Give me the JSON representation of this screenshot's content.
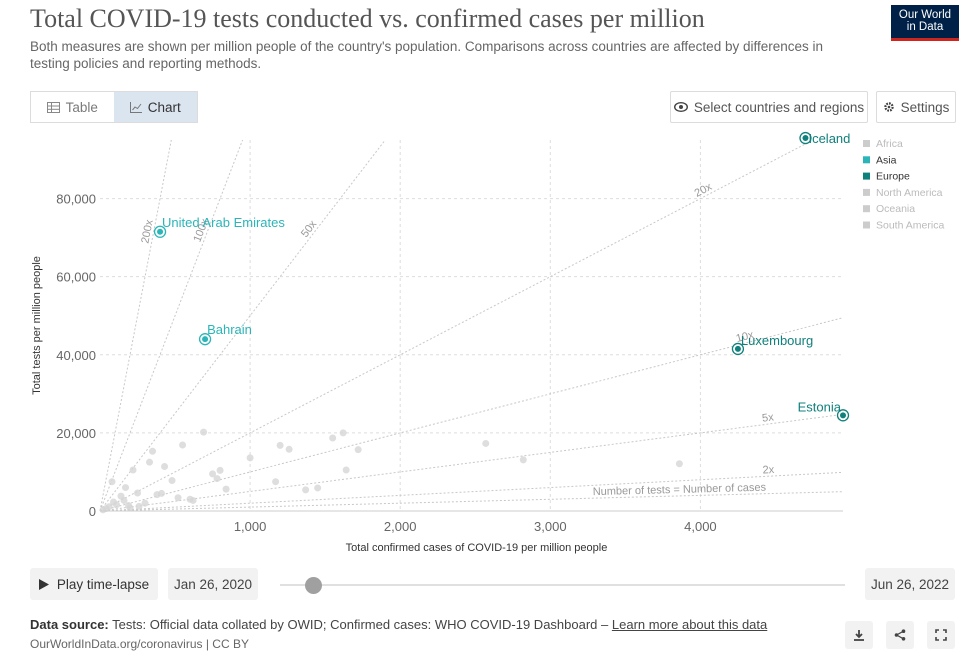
{
  "header": {
    "title": "Total COVID-19 tests conducted vs. confirmed cases per million",
    "subtitle": "Both measures are shown per million people of the country's population. Comparisons across countries are affected by differences in testing policies and reporting methods.",
    "logo_line1": "Our World",
    "logo_line2": "in Data"
  },
  "controls": {
    "table_label": "Table",
    "chart_label": "Chart",
    "select_label": "Select countries and regions",
    "settings_label": "Settings"
  },
  "colors": {
    "asia": "#2bb5b8",
    "europe": "#0f807c",
    "inactive": "#cccccc",
    "grid": "#dddddd"
  },
  "chart_data": {
    "type": "scatter",
    "xlabel": "Total confirmed cases of COVID-19 per million people",
    "ylabel": "Total tests per million people",
    "xlim": [
      0,
      4950
    ],
    "ylim": [
      0,
      95000
    ],
    "xticks": [
      1000,
      2000,
      3000,
      4000
    ],
    "xtick_labels": [
      "1,000",
      "2,000",
      "3,000",
      "4,000"
    ],
    "yticks": [
      0,
      20000,
      40000,
      60000,
      80000
    ],
    "ytick_labels": [
      "0",
      "20,000",
      "40,000",
      "60,000",
      "80,000"
    ],
    "grid": true,
    "legend_position": "right",
    "legend": [
      {
        "name": "Africa",
        "active": false
      },
      {
        "name": "Asia",
        "active": true
      },
      {
        "name": "Europe",
        "active": true
      },
      {
        "name": "North America",
        "active": false
      },
      {
        "name": "Oceania",
        "active": false
      },
      {
        "name": "South America",
        "active": false
      }
    ],
    "reference_lines": [
      {
        "ratio": 200,
        "label": "200x"
      },
      {
        "ratio": 100,
        "label": "100x"
      },
      {
        "ratio": 50,
        "label": "50x"
      },
      {
        "ratio": 20,
        "label": "20x"
      },
      {
        "ratio": 10,
        "label": "10x"
      },
      {
        "ratio": 5,
        "label": "5x"
      },
      {
        "ratio": 2,
        "label": "2x"
      },
      {
        "ratio": 1,
        "label": "Number of tests = Number of cases"
      }
    ],
    "highlighted": [
      {
        "name": "Iceland",
        "x": 4700,
        "y": 95500,
        "region": "Europe"
      },
      {
        "name": "United Arab Emirates",
        "x": 400,
        "y": 71500,
        "region": "Asia"
      },
      {
        "name": "Bahrain",
        "x": 700,
        "y": 44000,
        "region": "Asia"
      },
      {
        "name": "Luxembourg",
        "x": 4250,
        "y": 41500,
        "region": "Europe"
      },
      {
        "name": "Estonia",
        "x": 4950,
        "y": 24500,
        "region": "Europe"
      }
    ],
    "others": [
      {
        "x": 20,
        "y": 300
      },
      {
        "x": 40,
        "y": 600
      },
      {
        "x": 60,
        "y": 1100
      },
      {
        "x": 80,
        "y": 7500
      },
      {
        "x": 90,
        "y": 2300
      },
      {
        "x": 110,
        "y": 1600
      },
      {
        "x": 140,
        "y": 3800
      },
      {
        "x": 160,
        "y": 2700
      },
      {
        "x": 170,
        "y": 6000
      },
      {
        "x": 190,
        "y": 1400
      },
      {
        "x": 200,
        "y": 800
      },
      {
        "x": 220,
        "y": 10500
      },
      {
        "x": 250,
        "y": 4600
      },
      {
        "x": 260,
        "y": 1200
      },
      {
        "x": 300,
        "y": 2000
      },
      {
        "x": 330,
        "y": 12500
      },
      {
        "x": 350,
        "y": 15300
      },
      {
        "x": 380,
        "y": 4200
      },
      {
        "x": 410,
        "y": 4500
      },
      {
        "x": 430,
        "y": 11400
      },
      {
        "x": 480,
        "y": 7800
      },
      {
        "x": 520,
        "y": 3400
      },
      {
        "x": 550,
        "y": 16900
      },
      {
        "x": 600,
        "y": 3000
      },
      {
        "x": 620,
        "y": 2700
      },
      {
        "x": 690,
        "y": 20200
      },
      {
        "x": 750,
        "y": 9500
      },
      {
        "x": 780,
        "y": 8300
      },
      {
        "x": 800,
        "y": 10400
      },
      {
        "x": 840,
        "y": 5600
      },
      {
        "x": 1000,
        "y": 13600
      },
      {
        "x": 1170,
        "y": 7500
      },
      {
        "x": 1200,
        "y": 16800
      },
      {
        "x": 1260,
        "y": 15800
      },
      {
        "x": 1370,
        "y": 5400
      },
      {
        "x": 1450,
        "y": 5900
      },
      {
        "x": 1550,
        "y": 18700
      },
      {
        "x": 1620,
        "y": 20000
      },
      {
        "x": 1640,
        "y": 10500
      },
      {
        "x": 1720,
        "y": 15700
      },
      {
        "x": 2570,
        "y": 17300
      },
      {
        "x": 2820,
        "y": 13100
      },
      {
        "x": 3860,
        "y": 12100
      }
    ]
  },
  "timeline": {
    "play_label": "Play time-lapse",
    "start_date": "Jan 26, 2020",
    "end_date": "Jun 26, 2022",
    "position": 0.06
  },
  "footer": {
    "source_label": "Data source:",
    "source_text": "Tests: Official data collated by OWID; Confirmed cases: WHO COVID-19 Dashboard –",
    "learn_more": "Learn more about this data",
    "url_text": "OurWorldInData.org/coronavirus | CC BY"
  }
}
